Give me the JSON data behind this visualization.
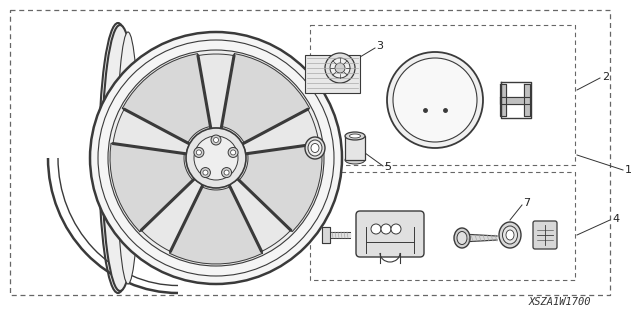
{
  "bg_color": "#ffffff",
  "title_code": "XSZA1W1700",
  "line_color": "#3a3a3a",
  "light_gray": "#cccccc",
  "mid_gray": "#aaaaaa",
  "dark_gray": "#888888"
}
